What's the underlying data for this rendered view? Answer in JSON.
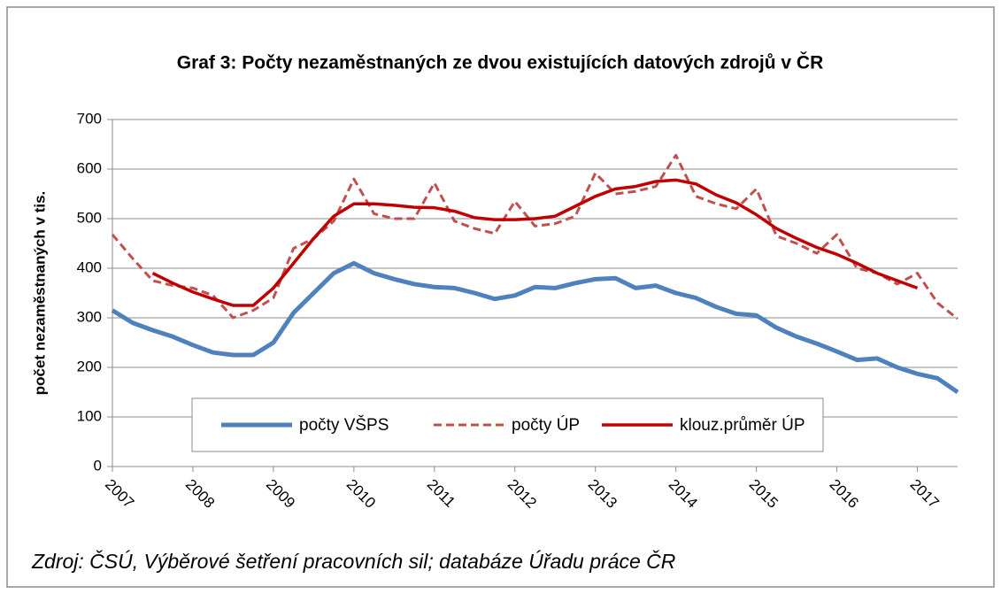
{
  "chart_data": {
    "type": "line",
    "title": "Graf 3: Počty nezaměstnaných ze dvou existujících datových zdrojů v ČR",
    "y_label": "počet nezaměstnaných v tis.",
    "source": "Zdroj: ČSÚ, Výběrové šetření pracovních sil; databáze Úřadu práce ČR",
    "x": [
      2007,
      2007.25,
      2007.5,
      2007.75,
      2008,
      2008.25,
      2008.5,
      2008.75,
      2009,
      2009.25,
      2009.5,
      2009.75,
      2010,
      2010.25,
      2010.5,
      2010.75,
      2011,
      2011.25,
      2011.5,
      2011.75,
      2012,
      2012.25,
      2012.5,
      2012.75,
      2013,
      2013.25,
      2013.5,
      2013.75,
      2014,
      2014.25,
      2014.5,
      2014.75,
      2015,
      2015.25,
      2015.5,
      2015.75,
      2016,
      2016.25,
      2016.5,
      2016.75,
      2017,
      2017.25,
      2017.5
    ],
    "series": [
      {
        "name": "počty VŠPS",
        "color": "#4f81bd",
        "dashed": false,
        "values": [
          315,
          290,
          275,
          262,
          245,
          230,
          225,
          225,
          250,
          310,
          350,
          390,
          410,
          390,
          378,
          368,
          362,
          360,
          350,
          338,
          345,
          362,
          360,
          370,
          378,
          380,
          360,
          365,
          350,
          340,
          322,
          308,
          305,
          280,
          262,
          248,
          232,
          215,
          218,
          200,
          187,
          178,
          150
        ]
      },
      {
        "name": "počty ÚP",
        "color": "#c0504d",
        "dashed": true,
        "values": [
          468,
          420,
          375,
          365,
          360,
          345,
          300,
          315,
          340,
          440,
          460,
          495,
          580,
          510,
          500,
          500,
          572,
          495,
          480,
          470,
          535,
          485,
          490,
          505,
          592,
          550,
          555,
          565,
          628,
          545,
          530,
          520,
          560,
          465,
          450,
          430,
          468,
          400,
          390,
          368,
          390,
          330,
          298
        ]
      },
      {
        "name": "klouz.průměr ÚP",
        "color": "#c00000",
        "dashed": false,
        "values": [
          null,
          null,
          390,
          370,
          352,
          338,
          325,
          325,
          360,
          410,
          460,
          505,
          530,
          530,
          527,
          523,
          522,
          515,
          502,
          498,
          498,
          500,
          505,
          525,
          545,
          560,
          565,
          575,
          578,
          570,
          548,
          532,
          508,
          480,
          460,
          442,
          428,
          410,
          390,
          375,
          360,
          null,
          null
        ]
      }
    ],
    "xlim": [
      2007,
      2017.5
    ],
    "xticks": [
      2007,
      2008,
      2009,
      2010,
      2011,
      2012,
      2013,
      2014,
      2015,
      2016,
      2017
    ],
    "ylim": [
      0,
      700
    ],
    "yticks": [
      0,
      100,
      200,
      300,
      400,
      500,
      600,
      700
    ],
    "grid": true
  }
}
